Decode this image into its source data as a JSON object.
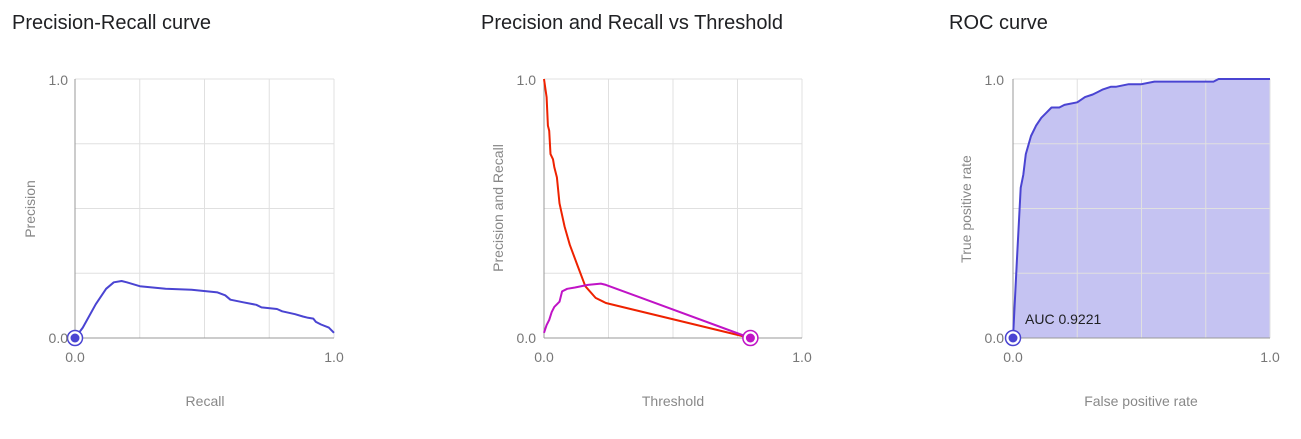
{
  "colors": {
    "pr_line": "#4a44d2",
    "precision_line": "#ee2200",
    "recall_line": "#c013c6",
    "roc_fill": "#c5c3f2",
    "grid": "#e0e0e0",
    "axis": "#999999"
  },
  "chart_data": [
    {
      "type": "line",
      "title": "Precision-Recall curve",
      "xlabel": "Recall",
      "ylabel": "Precision",
      "xlim": [
        0,
        1
      ],
      "ylim": [
        0,
        1
      ],
      "xticks": [
        "0.0",
        "1.0"
      ],
      "yticks": [
        "0.0",
        "1.0"
      ],
      "series": [
        {
          "name": "Precision-Recall",
          "x": [
            0.0,
            0.03,
            0.08,
            0.12,
            0.15,
            0.18,
            0.2,
            0.25,
            0.35,
            0.45,
            0.55,
            0.58,
            0.6,
            0.65,
            0.7,
            0.72,
            0.78,
            0.8,
            0.85,
            0.88,
            0.9,
            0.92,
            0.93,
            0.95,
            0.98,
            1.0
          ],
          "y": [
            0.0,
            0.04,
            0.13,
            0.19,
            0.215,
            0.22,
            0.215,
            0.2,
            0.19,
            0.186,
            0.176,
            0.165,
            0.148,
            0.138,
            0.128,
            0.118,
            0.112,
            0.103,
            0.092,
            0.083,
            0.078,
            0.075,
            0.062,
            0.052,
            0.04,
            0.02
          ]
        }
      ],
      "marker": {
        "x": 0.0,
        "y": 0.0
      }
    },
    {
      "type": "line",
      "title": "Precision and Recall vs Threshold",
      "xlabel": "Threshold",
      "ylabel": "Precision and Recall",
      "xlim": [
        0,
        1
      ],
      "ylim": [
        0,
        1
      ],
      "xticks": [
        "0.0",
        "1.0"
      ],
      "yticks": [
        "0.0",
        "1.0"
      ],
      "series": [
        {
          "name": "Precision",
          "x": [
            0.0,
            0.01,
            0.015,
            0.02,
            0.025,
            0.035,
            0.04,
            0.05,
            0.06,
            0.08,
            0.1,
            0.13,
            0.16,
            0.2,
            0.23,
            0.24,
            0.8
          ],
          "y": [
            1.0,
            0.93,
            0.82,
            0.8,
            0.71,
            0.69,
            0.66,
            0.62,
            0.52,
            0.43,
            0.36,
            0.28,
            0.2,
            0.155,
            0.14,
            0.135,
            0.0
          ]
        },
        {
          "name": "Recall",
          "x": [
            0.0,
            0.01,
            0.02,
            0.03,
            0.04,
            0.05,
            0.06,
            0.07,
            0.09,
            0.12,
            0.17,
            0.22,
            0.24,
            0.8
          ],
          "y": [
            0.02,
            0.05,
            0.07,
            0.1,
            0.12,
            0.13,
            0.14,
            0.18,
            0.19,
            0.195,
            0.205,
            0.21,
            0.205,
            0.0
          ]
        }
      ],
      "marker": {
        "x": 0.8,
        "y": 0.0
      }
    },
    {
      "type": "area",
      "title": "ROC curve",
      "xlabel": "False positive rate",
      "ylabel": "True positive rate",
      "xlim": [
        0,
        1
      ],
      "ylim": [
        0,
        1
      ],
      "xticks": [
        "0.0",
        "1.0"
      ],
      "yticks": [
        "0.0",
        "1.0"
      ],
      "series": [
        {
          "name": "ROC",
          "x": [
            0.0,
            0.015,
            0.03,
            0.04,
            0.05,
            0.07,
            0.09,
            0.11,
            0.13,
            0.15,
            0.18,
            0.2,
            0.25,
            0.28,
            0.31,
            0.33,
            0.35,
            0.38,
            0.4,
            0.45,
            0.5,
            0.55,
            0.78,
            0.8,
            1.0
          ],
          "y": [
            0.0,
            0.3,
            0.58,
            0.63,
            0.71,
            0.78,
            0.82,
            0.85,
            0.87,
            0.89,
            0.89,
            0.9,
            0.91,
            0.93,
            0.94,
            0.95,
            0.96,
            0.97,
            0.97,
            0.98,
            0.98,
            0.99,
            0.99,
            1.0,
            1.0
          ]
        }
      ],
      "marker": {
        "x": 0.0,
        "y": 0.0
      },
      "annotation": "AUC 0.9221"
    }
  ]
}
